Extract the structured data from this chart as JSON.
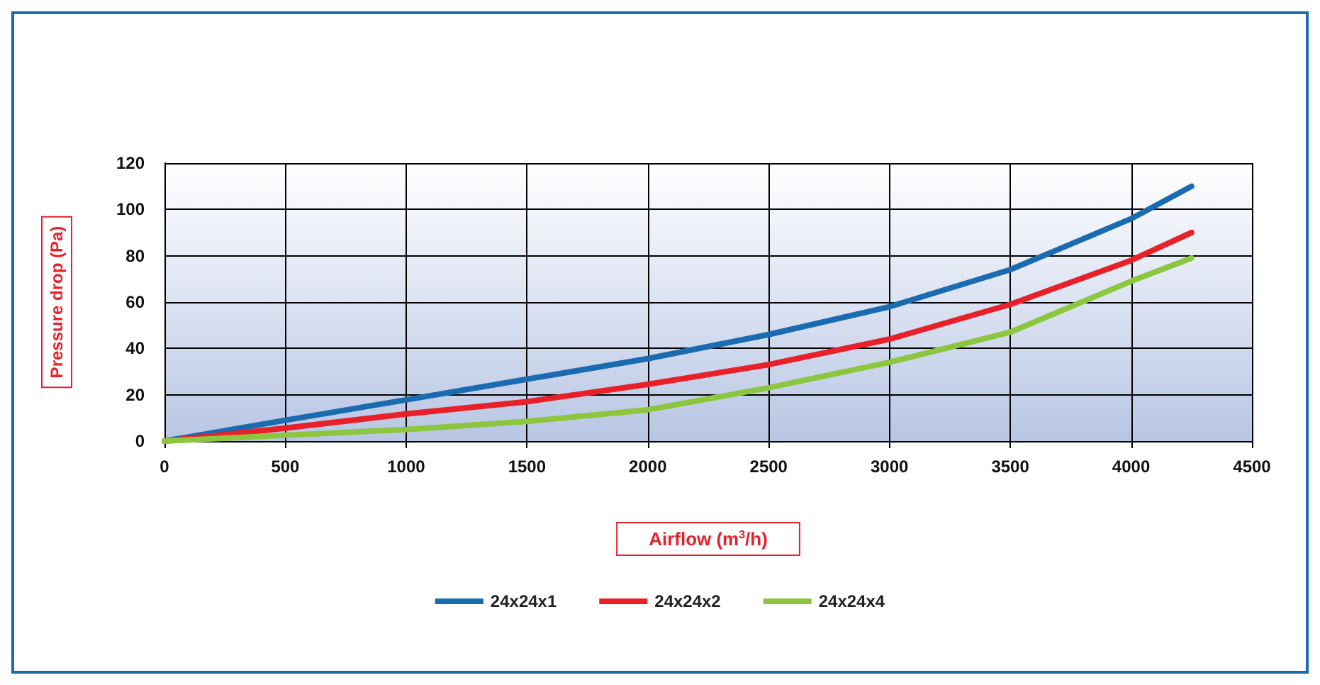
{
  "chart_data": {
    "type": "line",
    "xlabel": "Airflow (m$^{3}$/h)",
    "ylabel": "Pressure drop (Pa)",
    "xlim": [
      0,
      4500
    ],
    "xticks": [
      0,
      500,
      1000,
      1500,
      2000,
      2500,
      3000,
      3500,
      4000,
      4500
    ],
    "ylim": [
      0,
      120
    ],
    "yticks": [
      0,
      20,
      40,
      60,
      80,
      100,
      120
    ],
    "x": [
      0,
      500,
      1000,
      1500,
      2000,
      2500,
      3000,
      3500,
      4000,
      4250
    ],
    "series": [
      {
        "name": "24x24x1",
        "color": "#1a6bb0",
        "values": [
          0,
          9,
          17.8,
          26.7,
          35.6,
          46,
          58,
          74,
          96,
          110
        ]
      },
      {
        "name": "24x24x2",
        "color": "#e8202a",
        "values": [
          0,
          5.6,
          11.7,
          17,
          24.5,
          33,
          44,
          59,
          78,
          90
        ]
      },
      {
        "name": "24x24x4",
        "color": "#8cc63f",
        "values": [
          0,
          2.5,
          5,
          8.5,
          13.5,
          23,
          34,
          47,
          69,
          79
        ]
      }
    ],
    "grid": true,
    "legend": "bottom",
    "marker": "none",
    "line_style": "solid"
  }
}
